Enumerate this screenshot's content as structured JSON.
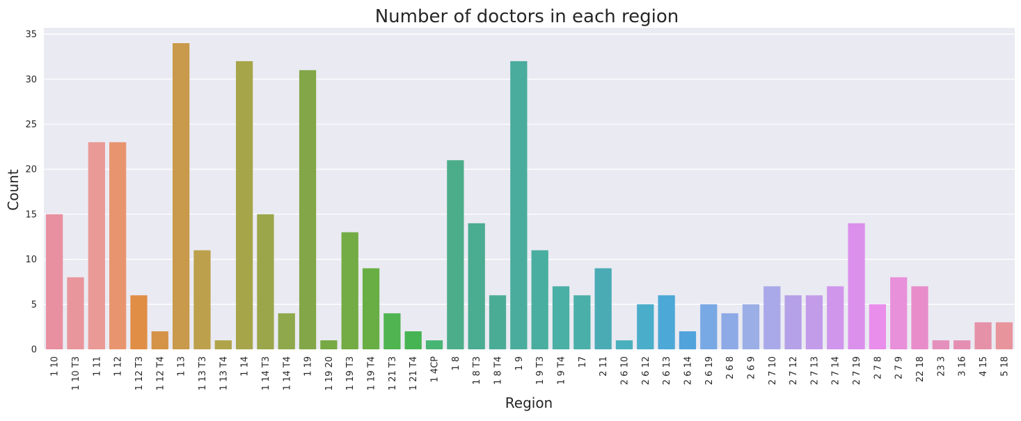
{
  "chart_data": {
    "type": "bar",
    "title": "Number of doctors in each region",
    "xlabel": "Region",
    "ylabel": "Count",
    "ylim": [
      0,
      35.7
    ],
    "yticks": [
      0,
      5,
      10,
      15,
      20,
      25,
      30,
      35
    ],
    "grid": true,
    "legend": "none",
    "categories": [
      "1 10",
      "1 10 T3",
      "1 11",
      "1 12",
      "1 12 T3",
      "1 12 T4",
      "1 13",
      "1 13 T3",
      "1 13 T4",
      "1 14",
      "1 14 T3",
      "1 14 T4",
      "1 19",
      "1 19 20",
      "1 19 T3",
      "1 19 T4",
      "1 21 T3",
      "1 21 T4",
      "1 4CP",
      "1 8",
      "1 8 T3",
      "1 8 T4",
      "1 9",
      "1 9 T3",
      "1 9 T4",
      "17",
      "2 11",
      "2 6 10",
      "2 6 12",
      "2 6 13",
      "2 6 14",
      "2 6 19",
      "2 6 8",
      "2 6 9",
      "2 7 10",
      "2 7 12",
      "2 7 13",
      "2 7 14",
      "2 7 19",
      "2 7 8",
      "2 7 9",
      "22 18",
      "23 3",
      "3 16",
      "4 15",
      "5 18"
    ],
    "values": [
      15,
      8,
      23,
      23,
      6,
      2,
      34,
      11,
      1,
      32,
      15,
      4,
      31,
      1,
      13,
      9,
      4,
      2,
      1,
      21,
      14,
      6,
      32,
      11,
      7,
      6,
      9,
      1,
      5,
      6,
      2,
      5,
      4,
      5,
      7,
      6,
      6,
      7,
      14,
      5,
      8,
      7,
      1,
      1,
      3,
      3
    ],
    "colors": [
      "#e8909f",
      "#e8969c",
      "#e99a96",
      "#e8956f",
      "#e08e46",
      "#d59347",
      "#c99a4b",
      "#bca04b",
      "#b0a44b",
      "#a6a549",
      "#9aa649",
      "#8ea84b",
      "#83a648",
      "#77a945",
      "#73ab45",
      "#68ae45",
      "#50b450",
      "#46b452",
      "#49b574",
      "#4cad8b",
      "#4aac91",
      "#4bac96",
      "#4aac9d",
      "#49ae9f",
      "#4aafa5",
      "#4aafa9",
      "#4aabb4",
      "#4ab0bd",
      "#4aadc9",
      "#4ca8d6",
      "#51a3dc",
      "#78a9e4",
      "#8da9e6",
      "#9baee6",
      "#a9a9e9",
      "#b5a1e7",
      "#c39ce9",
      "#cf96eb",
      "#db90eb",
      "#e98eeb",
      "#e890da",
      "#e88dca",
      "#e48fbc",
      "#e48fb2",
      "#e591a8",
      "#e8949d"
    ],
    "style": {
      "panel_bg": "#eaeaf2",
      "grid_color": "#ffffff",
      "text_color": "#262626"
    }
  }
}
